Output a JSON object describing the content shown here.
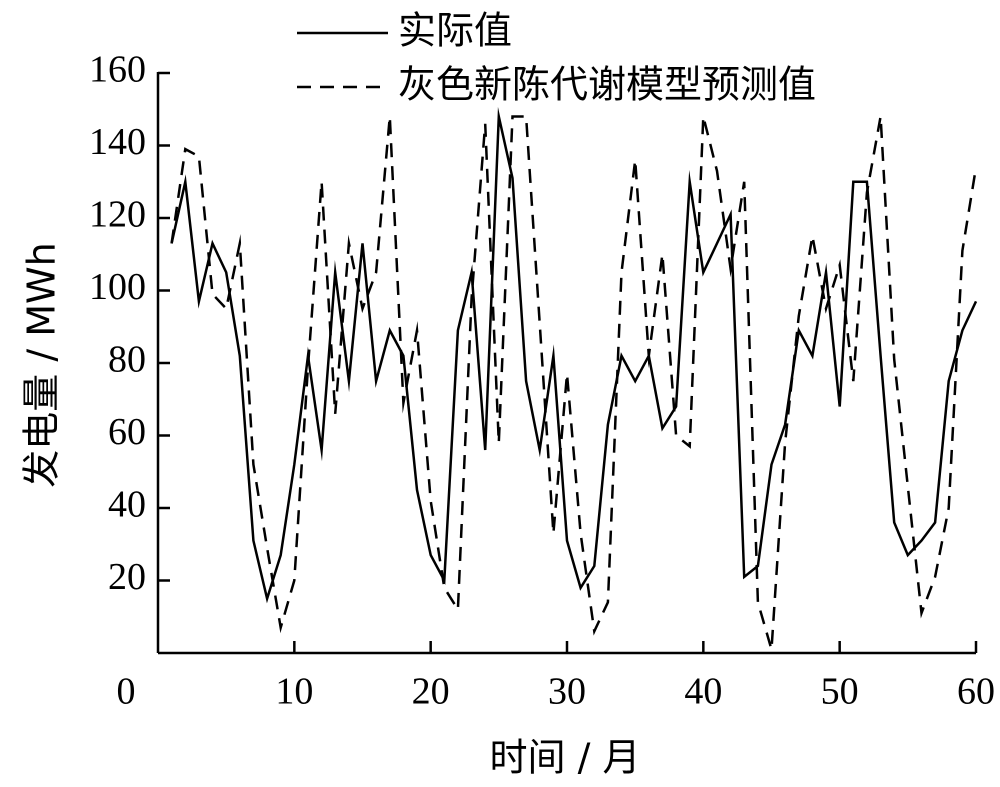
{
  "chart_data": {
    "type": "line",
    "xlabel": "时间 / 月",
    "ylabel": "发电量 / MWh",
    "xlim": [
      0,
      60
    ],
    "ylim": [
      0,
      160
    ],
    "xticks": [
      0,
      10,
      20,
      30,
      40,
      50,
      60
    ],
    "yticks": [
      20,
      40,
      60,
      80,
      100,
      120,
      140,
      160
    ],
    "grid": false,
    "legend_position": "top",
    "series": [
      {
        "name": "实际值",
        "style": "solid",
        "color": "#000000",
        "x": [
          1,
          2,
          3,
          4,
          5,
          6,
          7,
          8,
          9,
          10,
          11,
          12,
          13,
          14,
          15,
          16,
          17,
          18,
          19,
          20,
          21,
          22,
          23,
          24,
          25,
          26,
          27,
          28,
          29,
          30,
          31,
          32,
          33,
          34,
          35,
          36,
          37,
          38,
          39,
          40,
          41,
          42,
          43,
          44,
          45,
          46,
          47,
          48,
          49,
          50,
          51,
          52,
          53,
          54,
          55,
          56,
          57,
          58,
          59,
          60
        ],
        "y": [
          113,
          130,
          97,
          113,
          105,
          82,
          31,
          15,
          27,
          52,
          82,
          56,
          105,
          75,
          113,
          75,
          89,
          82,
          45,
          27,
          20,
          89,
          105,
          56,
          148,
          131,
          75,
          56,
          82,
          31,
          18,
          24,
          63,
          82,
          75,
          82,
          62,
          68,
          130,
          105,
          113,
          121,
          21,
          24,
          52,
          63,
          89,
          82,
          105,
          68,
          130,
          130,
          82,
          36,
          27,
          31,
          36,
          75,
          89,
          97
        ]
      },
      {
        "name": "灰色新陈代谢模型预测值",
        "style": "dashed",
        "color": "#000000",
        "x": [
          1,
          2,
          3,
          4,
          5,
          6,
          7,
          8,
          9,
          10,
          11,
          12,
          13,
          14,
          15,
          16,
          17,
          18,
          19,
          20,
          21,
          22,
          23,
          24,
          25,
          26,
          27,
          28,
          29,
          30,
          31,
          32,
          33,
          34,
          35,
          36,
          37,
          38,
          39,
          40,
          41,
          42,
          43,
          44,
          45,
          46,
          47,
          48,
          49,
          50,
          51,
          52,
          53,
          54,
          55,
          56,
          57,
          58,
          59,
          60
        ],
        "y": [
          113,
          139,
          137,
          99,
          95,
          113,
          52,
          29,
          7,
          20,
          79,
          130,
          66,
          113,
          95,
          105,
          148,
          69,
          89,
          42,
          18,
          12,
          98,
          146,
          58,
          148,
          148,
          91,
          33,
          77,
          33,
          6,
          14,
          105,
          136,
          82,
          110,
          60,
          57,
          148,
          133,
          106,
          130,
          14,
          1,
          58,
          93,
          115,
          95,
          107,
          75,
          127,
          148,
          81,
          46,
          11,
          21,
          40,
          111,
          134
        ]
      }
    ]
  }
}
